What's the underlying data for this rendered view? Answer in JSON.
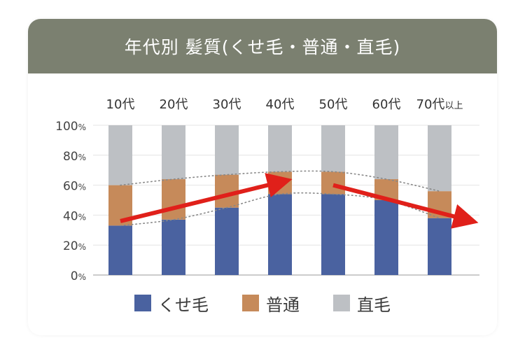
{
  "header": {
    "title": "年代別  髪質(くせ毛・普通・直毛)"
  },
  "chart_data": {
    "type": "bar",
    "stacked": true,
    "title": "年代別  髪質(くせ毛・普通・直毛)",
    "categories": [
      "10代",
      "20代",
      "30代",
      "40代",
      "50代",
      "60代",
      "70代以上"
    ],
    "ylim": [
      0,
      100
    ],
    "yticks": [
      "0%",
      "20%",
      "40%",
      "60%",
      "80%",
      "100%"
    ],
    "grid": true,
    "legend_position": "bottom",
    "series": [
      {
        "name": "くせ毛",
        "color": "#4a62a0",
        "values": [
          33,
          37,
          45,
          54,
          54,
          50,
          38
        ]
      },
      {
        "name": "普通",
        "color": "#c68a5a",
        "values": [
          27,
          27,
          22,
          15,
          15,
          14,
          18
        ]
      },
      {
        "name": "直毛",
        "color": "#bdc0c4",
        "values": [
          40,
          36,
          33,
          31,
          31,
          36,
          44
        ]
      }
    ],
    "annotations": {
      "arrow_color": "#e0201a",
      "arrows": [
        {
          "from_category": 0,
          "from_value": 36,
          "to_category": 3,
          "to_value": 62
        },
        {
          "from_category": 4,
          "from_value": 60,
          "to_category": 6.5,
          "to_value": 37
        }
      ],
      "dotted_curves": "upper and lower bounds of 普通 segment"
    }
  }
}
